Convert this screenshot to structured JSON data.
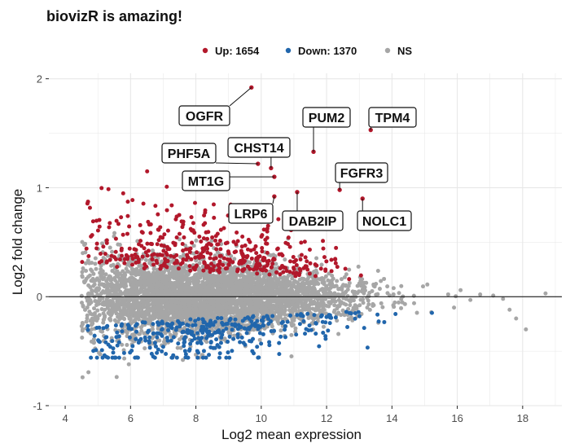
{
  "colors": {
    "up": "#B2182B",
    "down": "#2166AC",
    "ns": "#A6A6A6",
    "grid": "#E6E6E6",
    "axis": "#222222",
    "text": "#111111",
    "tick_text": "#4D4D4D"
  },
  "chart_data": {
    "type": "scatter",
    "title": "biovizR is amazing!",
    "xlabel": "Log2 mean expression",
    "ylabel": "Log2 fold change",
    "xlim": [
      3.5,
      19.2
    ],
    "ylim": [
      -1.0,
      2.05
    ],
    "x_ticks": [
      4,
      6,
      8,
      10,
      12,
      14,
      16,
      18
    ],
    "y_ticks": [
      -1,
      0,
      1,
      2
    ],
    "grid": true,
    "legend_position": "top",
    "legend": [
      {
        "key": "up",
        "label": "Up: 1654"
      },
      {
        "key": "down",
        "label": "Down: 1370"
      },
      {
        "key": "ns",
        "label": "NS"
      }
    ],
    "series": [
      {
        "name": "Up: 1654",
        "key": "up",
        "count": 1654
      },
      {
        "name": "Down: 1370",
        "key": "down",
        "count": 1370
      },
      {
        "name": "NS",
        "key": "ns"
      }
    ],
    "labeled_points": [
      {
        "label": "OGFR",
        "x": 9.7,
        "y": 1.92
      },
      {
        "label": "TPM4",
        "x": 13.35,
        "y": 1.53
      },
      {
        "label": "PUM2",
        "x": 11.6,
        "y": 1.33
      },
      {
        "label": "CHST14",
        "x": 10.3,
        "y": 1.18
      },
      {
        "label": "PHF5A",
        "x": 9.9,
        "y": 1.22
      },
      {
        "label": "FGFR3",
        "x": 12.4,
        "y": 0.98
      },
      {
        "label": "MT1G",
        "x": 10.4,
        "y": 1.1
      },
      {
        "label": "LRP6",
        "x": 10.4,
        "y": 0.92
      },
      {
        "label": "DAB2IP",
        "x": 11.1,
        "y": 0.96
      },
      {
        "label": "NOLC1",
        "x": 13.1,
        "y": 0.9
      }
    ]
  }
}
